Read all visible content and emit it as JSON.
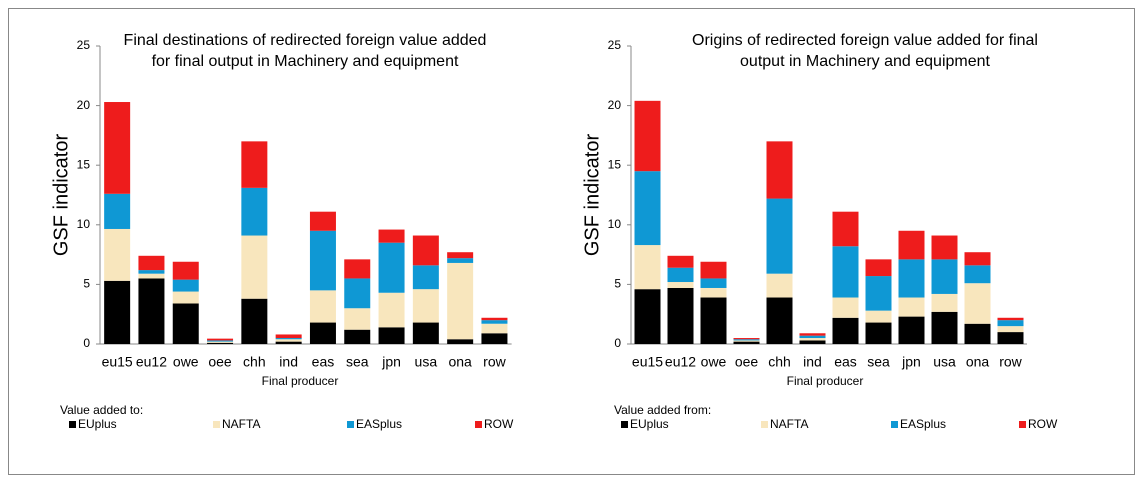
{
  "chart_data": [
    {
      "type": "bar",
      "stacked": true,
      "title": "Final destinations of redirected foreign value added for final output in Machinery and equipment",
      "ylabel": "GSF indicator",
      "xlabel": "Final producer",
      "legend_title": "Value added to:",
      "categories": [
        "eu15",
        "eu12",
        "owe",
        "oee",
        "chh",
        "ind",
        "eas",
        "sea",
        "jpn",
        "usa",
        "ona",
        "row"
      ],
      "ylim": [
        0,
        25
      ],
      "yticks": [
        0,
        5,
        10,
        15,
        20,
        25
      ],
      "series": [
        {
          "name": "EUplus",
          "color": "#000000",
          "values": [
            5.3,
            5.5,
            3.4,
            0.1,
            3.8,
            0.2,
            1.8,
            1.2,
            1.4,
            1.8,
            0.4,
            0.9
          ]
        },
        {
          "name": "NAFTA",
          "color": "#f8e6bd",
          "values": [
            4.35,
            0.4,
            1.0,
            0.1,
            5.3,
            0.2,
            2.7,
            1.8,
            2.9,
            2.8,
            6.4,
            0.8
          ]
        },
        {
          "name": "EASplus",
          "color": "#0f98d4",
          "values": [
            2.95,
            0.3,
            1.0,
            0.1,
            4.0,
            0.1,
            5.0,
            2.5,
            4.2,
            2.0,
            0.4,
            0.3
          ]
        },
        {
          "name": "ROW",
          "color": "#ee1c1c",
          "values": [
            7.7,
            1.2,
            1.5,
            0.15,
            3.9,
            0.3,
            1.6,
            1.6,
            1.1,
            2.5,
            0.5,
            0.2
          ]
        }
      ]
    },
    {
      "type": "bar",
      "stacked": true,
      "title": "Origins of redirected foreign value added for final output in Machinery and equipment",
      "ylabel": "GSF indicator",
      "xlabel": "Final producer",
      "legend_title": "Value added from:",
      "categories": [
        "eu15",
        "eu12",
        "owe",
        "oee",
        "chh",
        "ind",
        "eas",
        "sea",
        "jpn",
        "usa",
        "ona",
        "row"
      ],
      "ylim": [
        0,
        25
      ],
      "yticks": [
        0,
        5,
        10,
        15,
        20,
        25
      ],
      "series": [
        {
          "name": "EUplus",
          "color": "#000000",
          "values": [
            4.6,
            4.7,
            3.9,
            0.2,
            3.9,
            0.3,
            2.2,
            1.8,
            2.3,
            2.7,
            1.7,
            1.0
          ]
        },
        {
          "name": "NAFTA",
          "color": "#f8e6bd",
          "values": [
            3.7,
            0.5,
            0.8,
            0.1,
            2.0,
            0.2,
            1.7,
            1.0,
            1.6,
            1.5,
            3.4,
            0.5
          ]
        },
        {
          "name": "EASplus",
          "color": "#0f98d4",
          "values": [
            6.2,
            1.2,
            0.8,
            0.1,
            6.3,
            0.2,
            4.3,
            2.9,
            3.2,
            2.9,
            1.5,
            0.5
          ]
        },
        {
          "name": "ROW",
          "color": "#ee1c1c",
          "values": [
            5.9,
            1.0,
            1.4,
            0.1,
            4.8,
            0.2,
            2.9,
            1.4,
            2.4,
            2.0,
            1.1,
            0.2
          ]
        }
      ]
    }
  ]
}
